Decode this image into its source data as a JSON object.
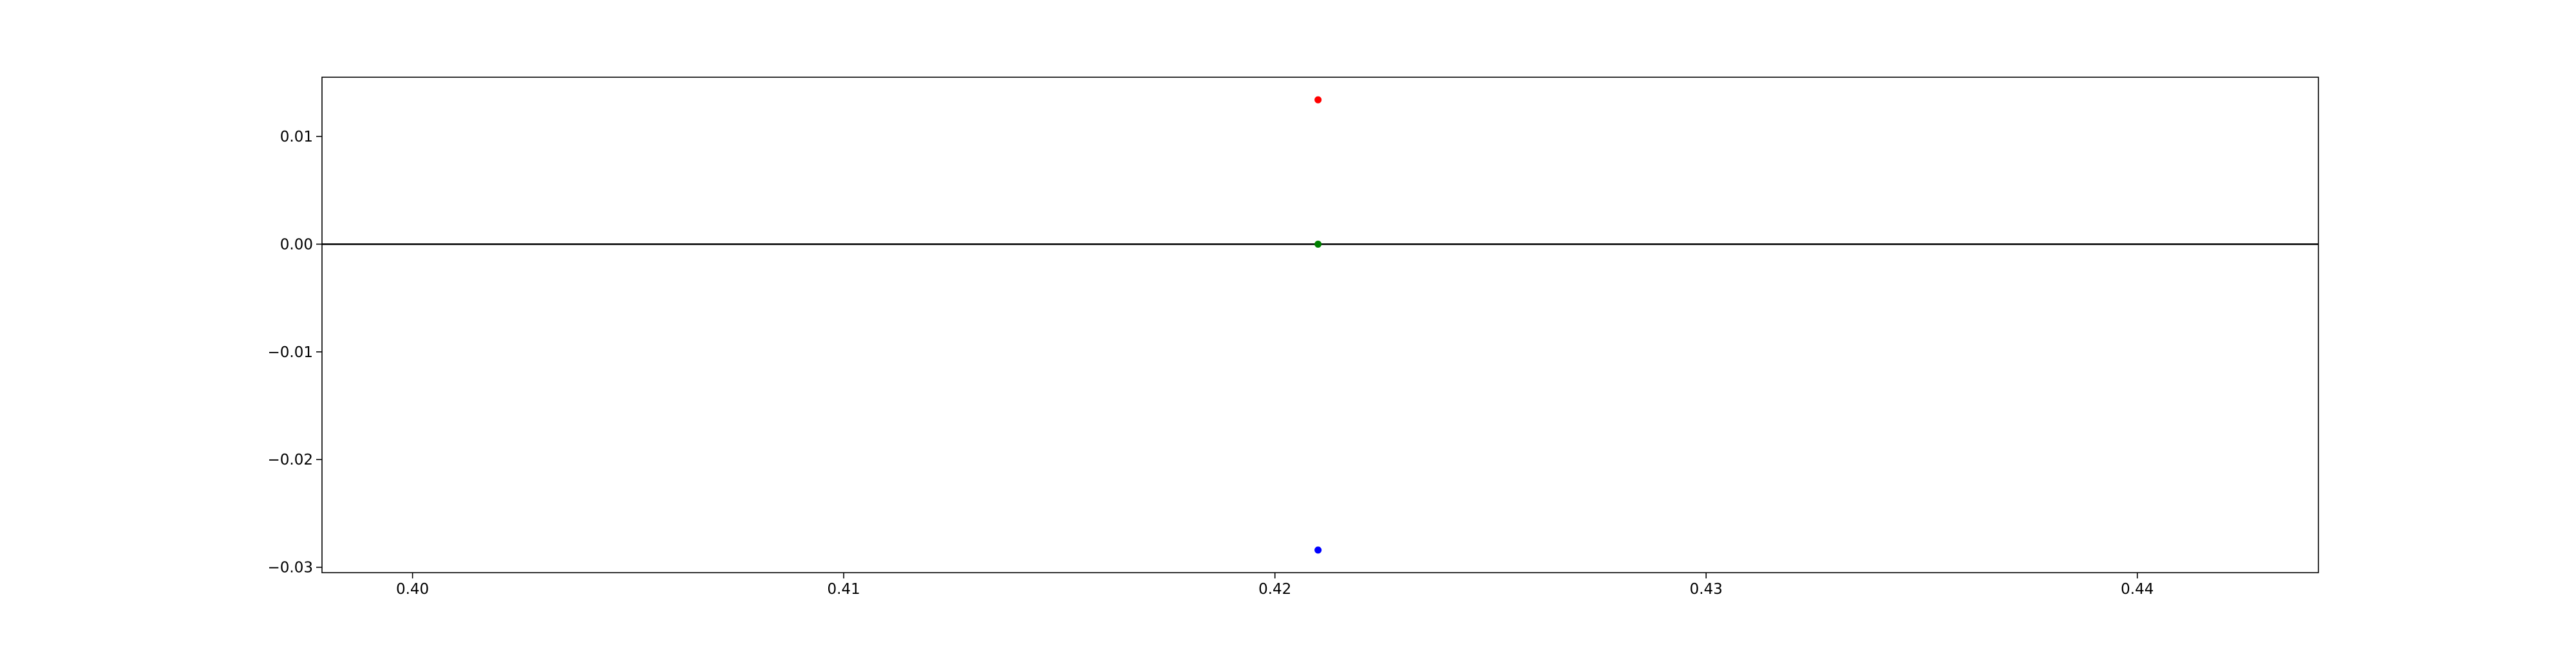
{
  "chart_data": {
    "type": "scatter",
    "title": "",
    "xlabel": "",
    "ylabel": "",
    "xlim": [
      0.3979,
      0.4442
    ],
    "ylim": [
      -0.0305,
      0.0155
    ],
    "x_ticks": [
      0.4,
      0.41,
      0.42,
      0.43,
      0.44
    ],
    "x_tick_labels": [
      "0.40",
      "0.41",
      "0.42",
      "0.43",
      "0.44"
    ],
    "y_ticks": [
      0.01,
      0.0,
      -0.01,
      -0.02,
      -0.03
    ],
    "y_tick_labels": [
      "0.01",
      "0.00",
      "−0.01",
      "−0.02",
      "−0.03"
    ],
    "grid": false,
    "legend": false,
    "reference_line": {
      "y": 0.0,
      "color": "#000000"
    },
    "points": [
      {
        "x": 0.421,
        "y": 0.0134,
        "color": "#ff0000"
      },
      {
        "x": 0.421,
        "y": 0.0,
        "color": "#008000"
      },
      {
        "x": 0.421,
        "y": -0.0284,
        "color": "#0000ff"
      }
    ]
  }
}
